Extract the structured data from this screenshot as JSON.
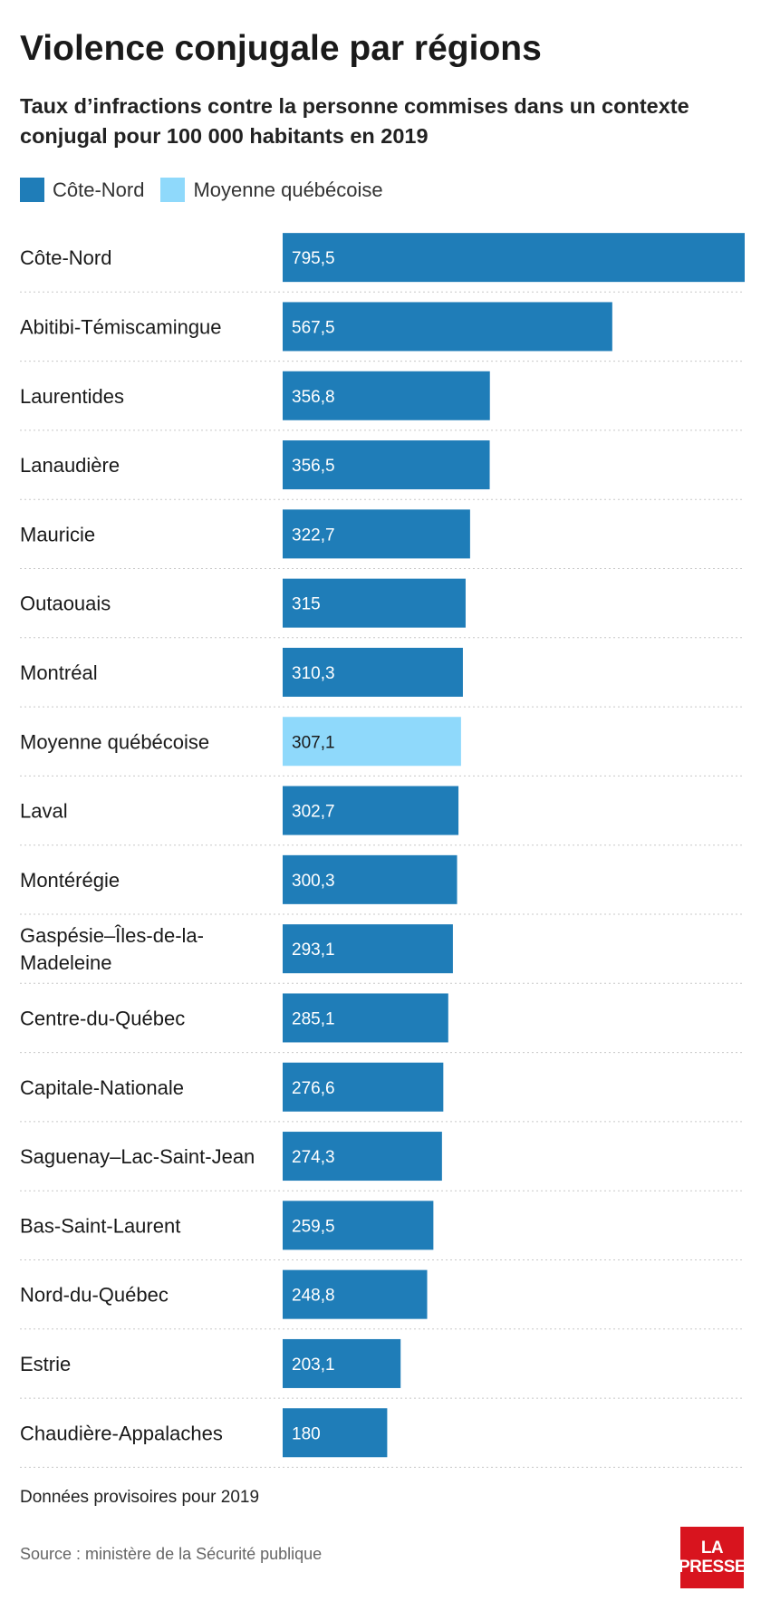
{
  "title": "Violence conjugale par régions",
  "subtitle": "Taux d’infractions contre la personne commises dans un contexte conjugal pour 100 000 habitants en 2019",
  "legend": [
    {
      "label": "Côte-Nord",
      "color": "#1f7db8"
    },
    {
      "label": "Moyenne québécoise",
      "color": "#8fd9fb"
    }
  ],
  "note": "Données provisoires pour 2019",
  "source": "Source : ministère de la Sécurité publique",
  "logo": {
    "line1": "LA",
    "line2": "PRESSE"
  },
  "chart_data": {
    "type": "bar",
    "orientation": "horizontal",
    "xlim": [
      0,
      795.5
    ],
    "grid": false,
    "legend_position": "top-left",
    "categories": [
      "Côte-Nord",
      "Abitibi-Témiscamingue",
      "Laurentides",
      "Lanaudière",
      "Mauricie",
      "Outaouais",
      "Montréal",
      "Moyenne québécoise",
      "Laval",
      "Montérégie",
      [
        "Gaspésie–Îles-de-la-",
        "Madeleine"
      ],
      "Centre-du-Québec",
      "Capitale-Nationale",
      "Saguenay–Lac-Saint-Jean",
      "Bas-Saint-Laurent",
      "Nord-du-Québec",
      "Estrie",
      "Chaudière-Appalaches"
    ],
    "values": [
      795.5,
      567.5,
      356.8,
      356.5,
      322.7,
      315,
      310.3,
      307.1,
      302.7,
      300.3,
      293.1,
      285.1,
      276.6,
      274.3,
      259.5,
      248.8,
      203.1,
      180
    ],
    "value_labels": [
      "795,5",
      "567,5",
      "356,8",
      "356,5",
      "322,7",
      "315",
      "310,3",
      "307,1",
      "302,7",
      "300,3",
      "293,1",
      "285,1",
      "276,6",
      "274,3",
      "259,5",
      "248,8",
      "203,1",
      "180"
    ],
    "bar_colors": [
      "#1f7db8",
      "#1f7db8",
      "#1f7db8",
      "#1f7db8",
      "#1f7db8",
      "#1f7db8",
      "#1f7db8",
      "#8fd9fb",
      "#1f7db8",
      "#1f7db8",
      "#1f7db8",
      "#1f7db8",
      "#1f7db8",
      "#1f7db8",
      "#1f7db8",
      "#1f7db8",
      "#1f7db8",
      "#1f7db8"
    ],
    "label_colors": [
      "#ffffff",
      "#ffffff",
      "#ffffff",
      "#ffffff",
      "#ffffff",
      "#ffffff",
      "#ffffff",
      "#1a1a1a",
      "#ffffff",
      "#ffffff",
      "#ffffff",
      "#ffffff",
      "#ffffff",
      "#ffffff",
      "#ffffff",
      "#ffffff",
      "#ffffff",
      "#ffffff"
    ]
  }
}
